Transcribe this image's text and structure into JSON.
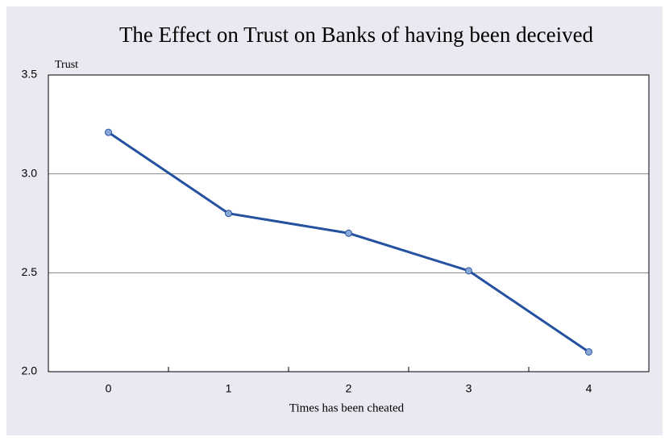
{
  "chart_data": {
    "type": "line",
    "title": "The Effect on Trust on Banks of having been deceived",
    "y_label": "Trust",
    "x_label": "Times has been cheated",
    "categories": [
      "0",
      "1",
      "2",
      "3",
      "4"
    ],
    "series": [
      {
        "name": "Trust",
        "color": "#2452a0",
        "values": [
          3.21,
          2.8,
          2.7,
          2.51,
          2.1
        ]
      }
    ],
    "ylim": [
      2.0,
      3.5
    ],
    "yticks": [
      {
        "value": 2.0,
        "label": "2.0"
      },
      {
        "value": 2.5,
        "label": "2.5"
      },
      {
        "value": 3.0,
        "label": "3.0"
      },
      {
        "value": 3.5,
        "label": "3.5"
      }
    ],
    "grid": true
  }
}
